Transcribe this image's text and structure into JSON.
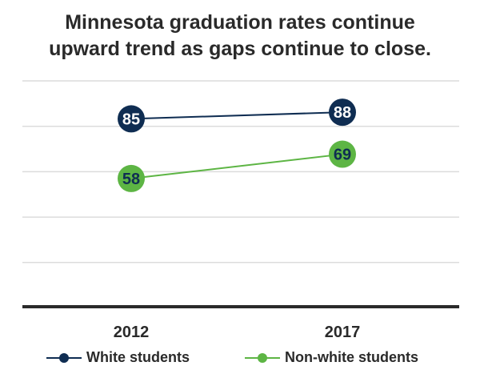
{
  "chart_data": {
    "type": "line",
    "title_lines": [
      "Minnesota graduation rates continue",
      "upward trend as gaps continue to close."
    ],
    "categories": [
      "2012",
      "2017"
    ],
    "series": [
      {
        "name": "White students",
        "values": [
          85,
          88
        ],
        "color": "#0f2d52"
      },
      {
        "name": "Non-white students",
        "values": [
          58,
          69
        ],
        "color": "#5db544"
      }
    ],
    "ylim": [
      0,
      100
    ],
    "gridlines": [
      20,
      40,
      60,
      80,
      100
    ],
    "xlabel": "",
    "ylabel": "",
    "legend_position": "bottom"
  }
}
